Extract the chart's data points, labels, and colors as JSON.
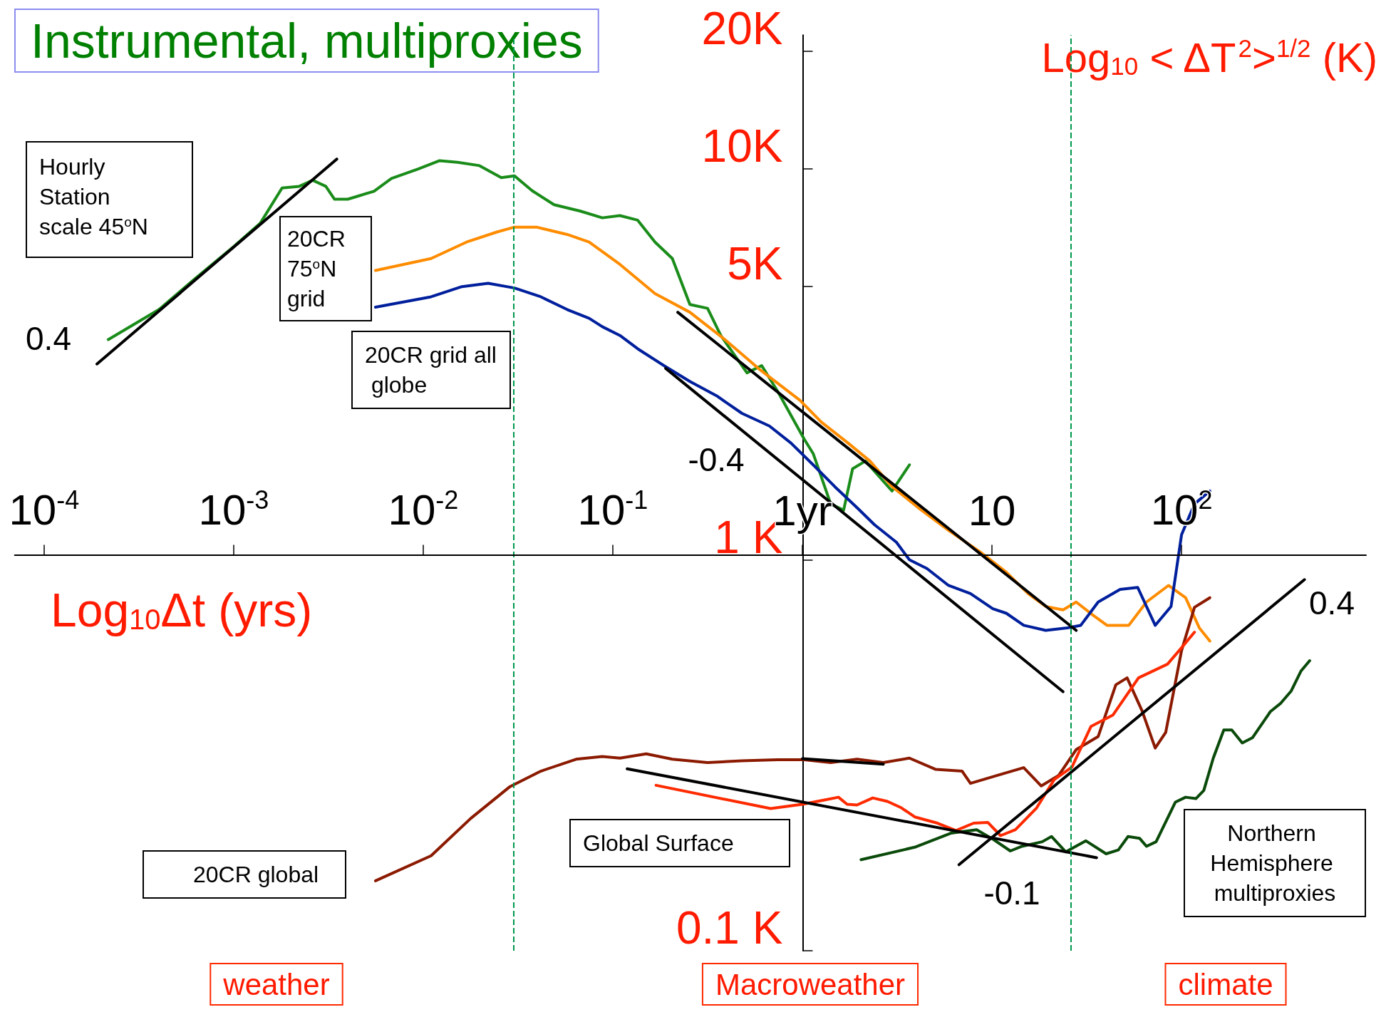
{
  "chart_data": {
    "type": "line",
    "title": "Instrumental, multiproxies",
    "xlabel": "Log$_{10}$Δt (yrs)",
    "ylabel": "Log$_{10}$ < ΔT$^{2}$>$^{1/2}$ (K)",
    "log": "xy",
    "marker": "none",
    "line_style": "solid",
    "xlim": [
      7e-05,
      940
    ],
    "ylim": [
      0.1,
      22
    ],
    "xticks": [
      {
        "value": 0.0001,
        "label": "10$^{-4}$"
      },
      {
        "value": 0.001,
        "label": "10$^{-3}$"
      },
      {
        "value": 0.01,
        "label": "10$^{-2}$"
      },
      {
        "value": 0.1,
        "label": "10$^{-1}$"
      },
      {
        "value": 1,
        "label": "1yr"
      },
      10,
      {
        "value": 100,
        "label": "10$^{2}$"
      }
    ],
    "yticks": [
      {
        "value": 0.1,
        "label": "0.1 K"
      },
      {
        "value": 1,
        "label": "1 K"
      },
      {
        "value": 5,
        "label": "5K"
      },
      {
        "value": 10,
        "label": "10K"
      },
      {
        "value": 20,
        "label": "20K"
      }
    ],
    "ref_lines": [
      {
        "axis": "x",
        "value": 0.032,
        "color": "#00994d",
        "line_style": "dashed"
      },
      {
        "axis": "x",
        "value": 26,
        "color": "#00994d",
        "line_style": "dashed"
      }
    ],
    "series": [
      {
        "name": "Hourly Station scale 45$^{o}$N",
        "color": "#1a8c1a",
        "x": [
          0.000218,
          0.000404,
          0.000619,
          0.001,
          0.00138,
          0.0018,
          0.00222,
          0.00261,
          0.00306,
          0.0034,
          0.004,
          0.0055,
          0.0068,
          0.0094,
          0.0122,
          0.0152,
          0.0198,
          0.0258,
          0.0303,
          0.0375,
          0.049,
          0.0675,
          0.088,
          0.109,
          0.135,
          0.167,
          0.206,
          0.255,
          0.316,
          0.371,
          0.51,
          0.61,
          0.74,
          1.02,
          1.14,
          1.41,
          1.65,
          1.84,
          2.15,
          2.97,
          3.67
        ],
        "values": [
          3.66,
          4.37,
          5.22,
          6.33,
          7.26,
          8.94,
          9.03,
          9.36,
          9.03,
          8.37,
          8.37,
          8.77,
          9.46,
          10.0,
          10.5,
          10.4,
          10.2,
          9.5,
          9.6,
          8.8,
          8.1,
          7.8,
          7.5,
          7.6,
          7.4,
          6.5,
          5.9,
          4.5,
          4.4,
          3.75,
          3.01,
          3.14,
          2.7,
          2.04,
          1.87,
          1.39,
          1.34,
          1.71,
          1.79,
          1.5,
          1.75
        ]
      },
      {
        "name": "20CR 75$^{o}$N grid",
        "color": "#ff8c00",
        "x": [
          0.0056,
          0.011,
          0.0169,
          0.0245,
          0.0303,
          0.0395,
          0.0574,
          0.075,
          0.109,
          0.167,
          0.255,
          0.39,
          0.6,
          0.97,
          1.26,
          1.74,
          2.27,
          2.97,
          4.08,
          5.9,
          8.6,
          11.9,
          15.5,
          19.2,
          23.7,
          27.8,
          34.4,
          40.4,
          52.7,
          65.3,
          85.3,
          105,
          124,
          141
        ],
        "values": [
          5.5,
          5.9,
          6.5,
          6.9,
          7.1,
          7.1,
          6.8,
          6.5,
          5.7,
          4.8,
          4.3,
          3.66,
          3.06,
          2.56,
          2.25,
          1.99,
          1.79,
          1.54,
          1.36,
          1.19,
          1.05,
          0.93,
          0.82,
          0.76,
          0.745,
          0.78,
          0.72,
          0.68,
          0.68,
          0.78,
          0.86,
          0.8,
          0.67,
          0.62
        ]
      },
      {
        "name": "20CR grid all globe",
        "color": "#001f9c",
        "x": [
          0.0056,
          0.011,
          0.016,
          0.022,
          0.0303,
          0.0417,
          0.0574,
          0.075,
          0.088,
          0.109,
          0.135,
          0.186,
          0.255,
          0.352,
          0.48,
          0.67,
          0.87,
          1.14,
          1.48,
          1.94,
          2.4,
          3.13,
          3.67,
          4.54,
          5.9,
          7.7,
          10.1,
          11.9,
          14.7,
          19.2,
          25.0,
          29.4,
          36.3,
          47.4,
          58.7,
          72.6,
          88,
          100,
          117,
          141
        ],
        "values": [
          4.43,
          4.71,
          5.0,
          5.1,
          4.96,
          4.71,
          4.37,
          4.15,
          3.95,
          3.75,
          3.47,
          3.14,
          2.86,
          2.63,
          2.37,
          2.2,
          1.99,
          1.75,
          1.54,
          1.36,
          1.23,
          1.11,
          1.0,
          0.95,
          0.86,
          0.82,
          0.75,
          0.73,
          0.68,
          0.66,
          0.67,
          0.68,
          0.78,
          0.84,
          0.85,
          0.68,
          0.76,
          1.16,
          1.39,
          1.5
        ]
      },
      {
        "name": "20CR global",
        "color": "#8b1a00",
        "x": [
          0.0056,
          0.011,
          0.0178,
          0.0287,
          0.0417,
          0.064,
          0.088,
          0.109,
          0.15,
          0.206,
          0.316,
          0.48,
          0.74,
          1.02,
          1.41,
          1.94,
          2.67,
          3.67,
          5.05,
          6.96,
          7.7,
          10.7,
          14.7,
          18.2,
          22.5,
          27.8,
          36.3,
          45.0,
          51.6,
          61.9,
          72.6,
          82.5,
          100,
          117,
          141
        ],
        "values": [
          0.151,
          0.175,
          0.218,
          0.263,
          0.288,
          0.309,
          0.314,
          0.311,
          0.319,
          0.309,
          0.303,
          0.306,
          0.308,
          0.308,
          0.303,
          0.309,
          0.303,
          0.311,
          0.291,
          0.288,
          0.268,
          0.281,
          0.294,
          0.264,
          0.281,
          0.327,
          0.353,
          0.479,
          0.499,
          0.411,
          0.33,
          0.362,
          0.586,
          0.756,
          0.8
        ]
      },
      {
        "name": "Global Surface",
        "color": "#ff2a00",
        "x": [
          0.169,
          0.68,
          1.0,
          1.25,
          1.55,
          1.72,
          1.94,
          2.35,
          2.81,
          3.33,
          3.91,
          5.16,
          6.46,
          8.0,
          9.5,
          11.1,
          13.3,
          17.2,
          21.3,
          26.4,
          33.3,
          43.5,
          59.3,
          84.3,
          98,
          117
        ],
        "values": [
          0.265,
          0.231,
          0.237,
          0.242,
          0.247,
          0.237,
          0.236,
          0.246,
          0.241,
          0.232,
          0.22,
          0.212,
          0.203,
          0.212,
          0.213,
          0.197,
          0.204,
          0.232,
          0.274,
          0.295,
          0.375,
          0.401,
          0.499,
          0.541,
          0.589,
          0.653
        ]
      },
      {
        "name": "Northern Hemisphere multiproxies",
        "color": "#0a4a0a",
        "x": [
          2.04,
          3.91,
          6.1,
          8.3,
          10.1,
          12.5,
          14.4,
          18.4,
          20.6,
          24.5,
          31.3,
          40.0,
          46.4,
          52.2,
          60.0,
          65.3,
          73.4,
          92.8,
          105,
          119,
          131,
          147,
          167,
          184,
          209,
          237,
          294,
          334,
          379,
          426,
          474
        ],
        "values": [
          0.171,
          0.184,
          0.2,
          0.204,
          0.193,
          0.18,
          0.185,
          0.19,
          0.196,
          0.179,
          0.191,
          0.177,
          0.181,
          0.196,
          0.194,
          0.185,
          0.19,
          0.24,
          0.247,
          0.245,
          0.257,
          0.311,
          0.367,
          0.367,
          0.34,
          0.351,
          0.409,
          0.43,
          0.462,
          0.519,
          0.552
        ]
      },
      {
        "color": "#000000",
        "x": [
          0.00019,
          0.0035
        ],
        "values": [
          3.17,
          10.6
        ]
      },
      {
        "color": "#000000",
        "x": [
          0.22,
          27.8
        ],
        "values": [
          4.3,
          0.66
        ]
      },
      {
        "color": "#000000",
        "x": [
          0.19,
          23.7
        ],
        "values": [
          3.09,
          0.46
        ]
      },
      {
        "color": "#000000",
        "x": [
          0.119,
          35.6
        ],
        "values": [
          0.292,
          0.173
        ]
      },
      {
        "color": "#000000",
        "x": [
          6.7,
          445
        ],
        "values": [
          0.166,
          0.89
        ]
      },
      {
        "color": "#000000",
        "x": [
          1.0,
          2.67
        ],
        "values": [
          0.31,
          0.3
        ]
      }
    ],
    "annotations": [
      "0.4",
      "-0.4",
      "-0.1",
      "0.4",
      "weather",
      "Macroweather",
      "climate"
    ]
  }
}
